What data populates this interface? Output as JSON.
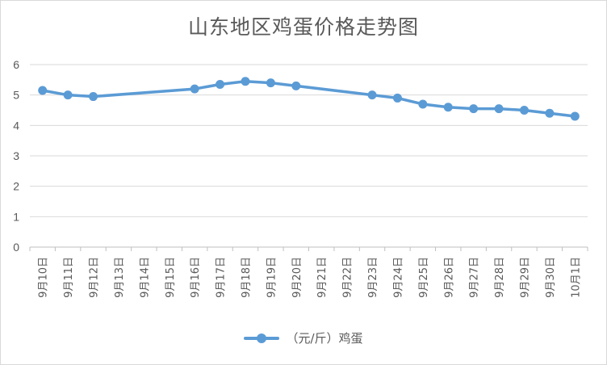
{
  "chart_data": {
    "type": "line",
    "title": "山东地区鸡蛋价格走势图",
    "categories": [
      "9月10日",
      "9月11日",
      "9月12日",
      "9月13日",
      "9月14日",
      "9月15日",
      "9月16日",
      "9月17日",
      "9月18日",
      "9月19日",
      "9月20日",
      "9月21日",
      "9月22日",
      "9月23日",
      "9月24日",
      "9月25日",
      "9月26日",
      "9月27日",
      "9月28日",
      "9月29日",
      "9月30日",
      "10月1日"
    ],
    "series": [
      {
        "name": "（元/斤）鸡蛋",
        "values": [
          5.15,
          5.0,
          4.95,
          null,
          null,
          null,
          5.2,
          5.35,
          5.45,
          5.4,
          5.3,
          null,
          null,
          5.0,
          4.9,
          4.7,
          4.6,
          4.55,
          4.55,
          4.5,
          4.4,
          4.3
        ],
        "color": "#5b9bd5"
      }
    ],
    "ylim": [
      0,
      6
    ],
    "yticks": [
      0,
      1,
      2,
      3,
      4,
      5,
      6
    ],
    "grid": true,
    "legend_position": "bottom"
  }
}
